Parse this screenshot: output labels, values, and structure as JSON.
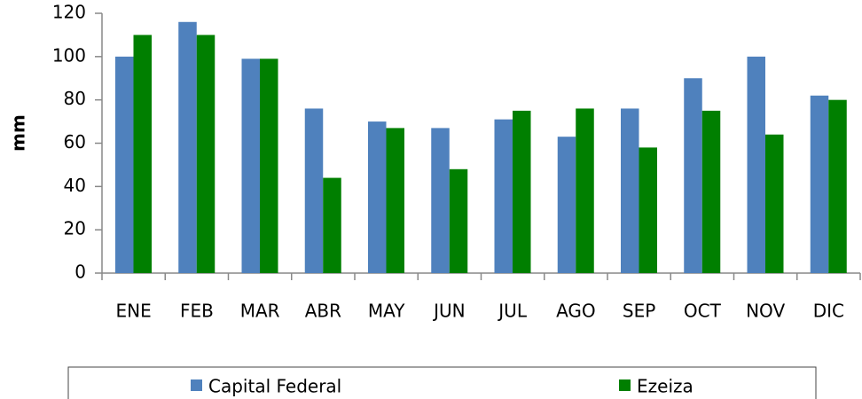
{
  "chart_data": {
    "type": "bar",
    "y_label": "mm",
    "categories": [
      "ENE",
      "FEB",
      "MAR",
      "ABR",
      "MAY",
      "JUN",
      "JUL",
      "AGO",
      "SEP",
      "OCT",
      "NOV",
      "DIC"
    ],
    "series": [
      {
        "name": "Capital Federal",
        "color": "#4f81bd",
        "values": [
          100,
          116,
          99,
          76,
          70,
          67,
          71,
          63,
          76,
          90,
          100,
          82
        ]
      },
      {
        "name": "Ezeiza",
        "color": "#007f00",
        "values": [
          110,
          110,
          99,
          44,
          67,
          48,
          75,
          76,
          58,
          75,
          64,
          80
        ]
      }
    ],
    "ylim": [
      0,
      120
    ],
    "yticks": [
      0,
      20,
      40,
      60,
      80,
      100,
      120
    ],
    "grid": false,
    "legend": "bottom"
  }
}
